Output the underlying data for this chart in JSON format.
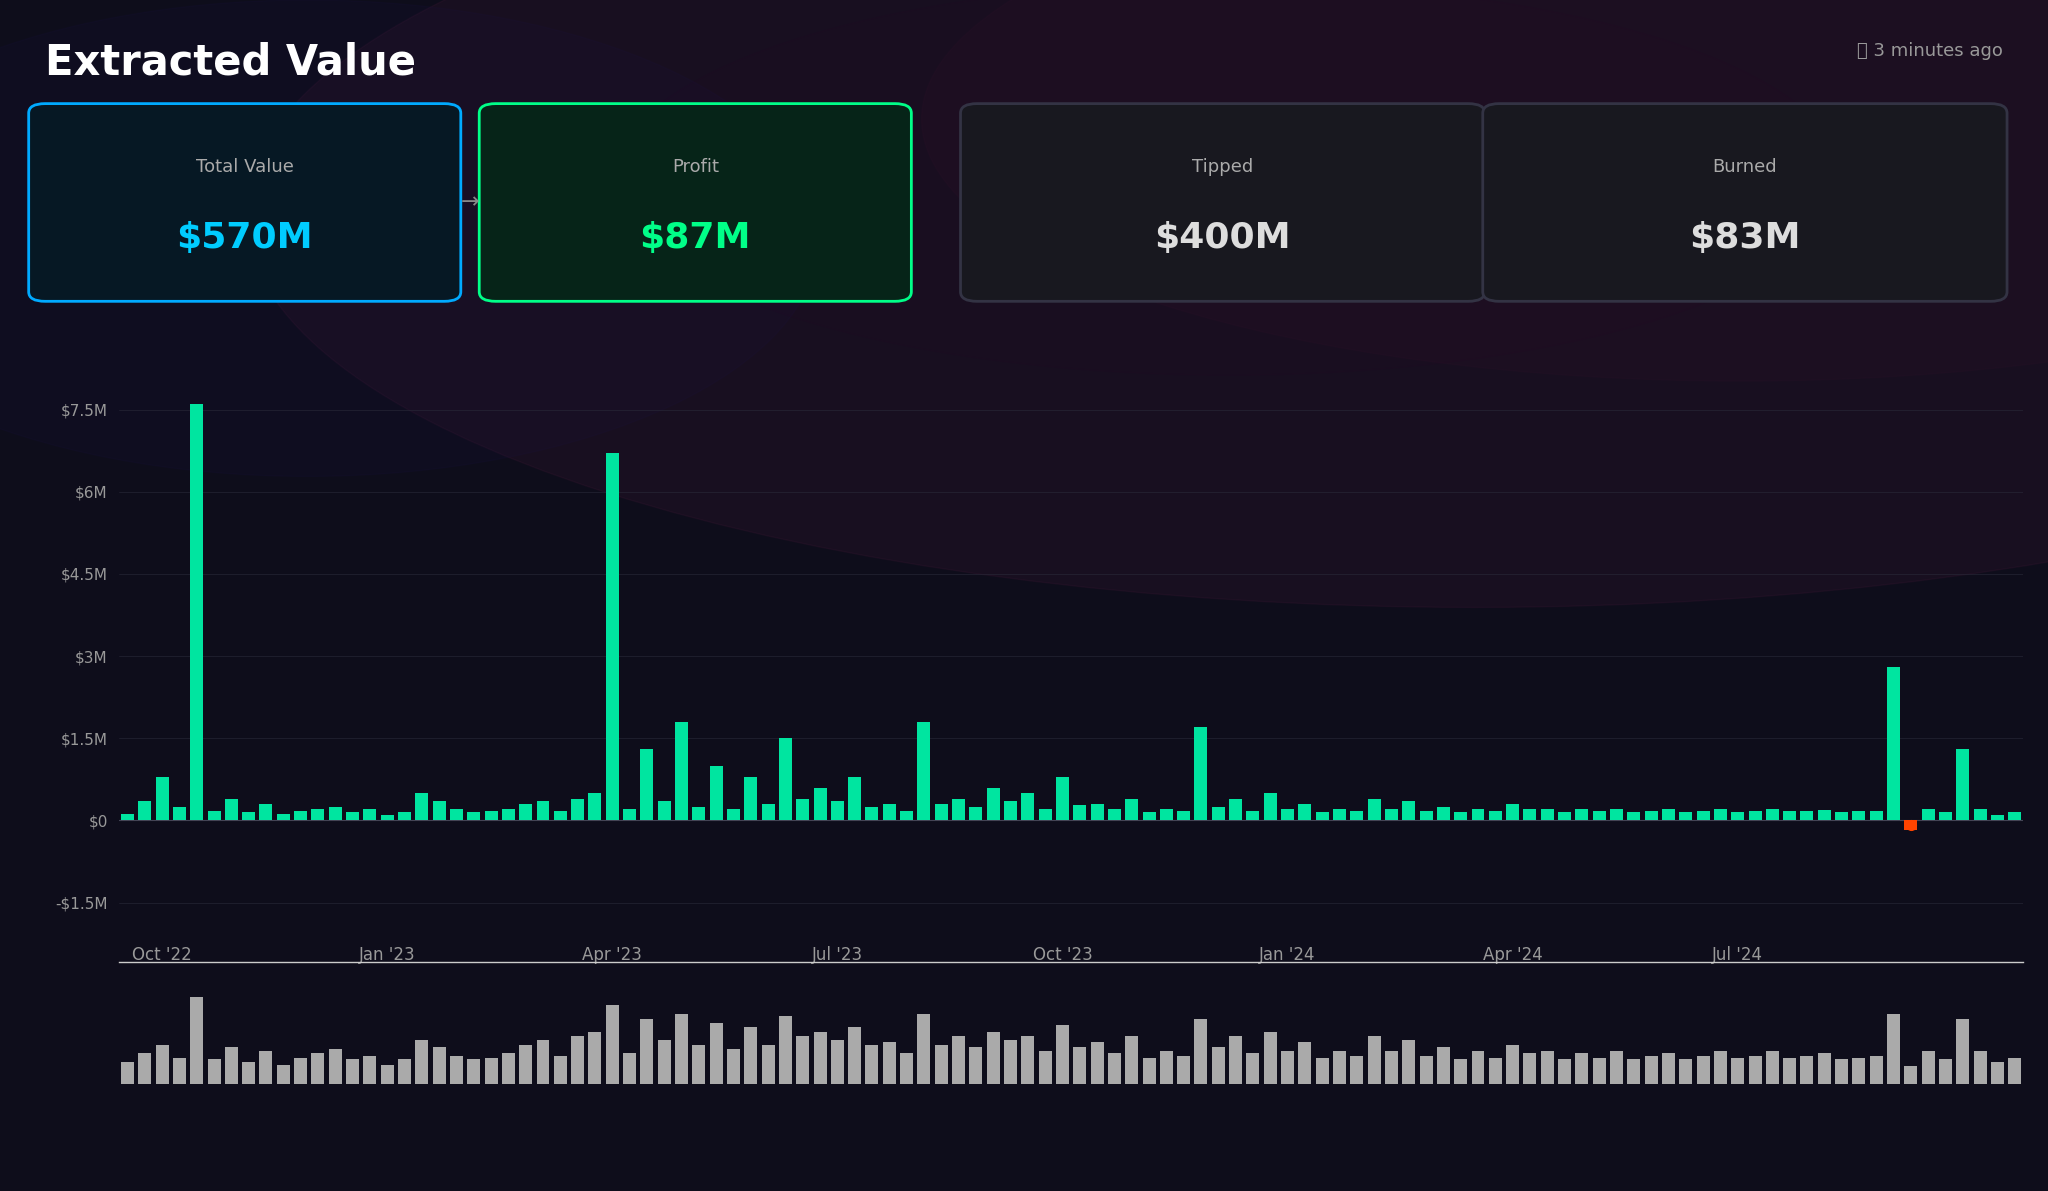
{
  "title": "Extracted Value",
  "timestamp": "⌛ 3 minutes ago",
  "stats": [
    {
      "label": "Total Value",
      "value": "$570M",
      "border": "#00aaff",
      "bg": "#061824",
      "val_color": "#00ccff"
    },
    {
      "label": "Profit",
      "value": "$87M",
      "border": "#00ff88",
      "bg": "#062418",
      "val_color": "#00ff88"
    },
    {
      "label": "Tipped",
      "value": "$400M",
      "border": "#333344",
      "bg": "#18181f",
      "val_color": "#dddddd"
    },
    {
      "label": "Burned",
      "value": "$83M",
      "border": "#333344",
      "bg": "#18181f",
      "val_color": "#dddddd"
    }
  ],
  "bg_color": "#0e0d1b",
  "bar_color": "#00e5a0",
  "bar_color_neg": "#ff4400",
  "mini_bar_color": "#aaaaaa",
  "yticks": [
    "$7.5M",
    "$6M",
    "$4.5M",
    "$3M",
    "$1.5M",
    "$0",
    "-$1.5M"
  ],
  "ytick_vals": [
    7500000,
    6000000,
    4500000,
    3000000,
    1500000,
    0,
    -1500000
  ],
  "xtick_labels": [
    "Oct '22",
    "Jan '23",
    "Apr '23",
    "Jul '23",
    "Oct '23",
    "Jan '24",
    "Apr '24",
    "Jul '24"
  ],
  "ylim": [
    -2200000,
    9000000
  ],
  "bar_values": [
    120000,
    350000,
    800000,
    250000,
    7600000,
    180000,
    400000,
    150000,
    300000,
    120000,
    180000,
    200000,
    250000,
    150000,
    200000,
    100000,
    150000,
    500000,
    350000,
    200000,
    150000,
    180000,
    200000,
    300000,
    350000,
    180000,
    400000,
    500000,
    6700000,
    200000,
    1300000,
    350000,
    1800000,
    250000,
    1000000,
    200000,
    800000,
    300000,
    1500000,
    400000,
    600000,
    350000,
    800000,
    250000,
    300000,
    180000,
    1800000,
    300000,
    400000,
    250000,
    600000,
    350000,
    500000,
    200000,
    800000,
    280000,
    300000,
    200000,
    400000,
    150000,
    200000,
    180000,
    1700000,
    250000,
    400000,
    180000,
    500000,
    200000,
    300000,
    150000,
    200000,
    180000,
    400000,
    200000,
    350000,
    180000,
    250000,
    150000,
    200000,
    180000,
    300000,
    200000,
    200000,
    150000,
    200000,
    180000,
    200000,
    150000,
    180000,
    200000,
    150000,
    180000,
    200000,
    160000,
    180000,
    200000,
    170000,
    180000,
    190000,
    160000,
    170000,
    180000,
    2800000,
    -180000,
    200000,
    150000,
    1300000,
    200000,
    100000,
    150000
  ],
  "mini_bar_values": [
    0.25,
    0.35,
    0.45,
    0.3,
    1.0,
    0.28,
    0.42,
    0.25,
    0.38,
    0.22,
    0.3,
    0.35,
    0.4,
    0.28,
    0.32,
    0.22,
    0.28,
    0.5,
    0.42,
    0.32,
    0.28,
    0.3,
    0.35,
    0.45,
    0.5,
    0.32,
    0.55,
    0.6,
    0.9,
    0.35,
    0.75,
    0.5,
    0.8,
    0.45,
    0.7,
    0.4,
    0.65,
    0.45,
    0.78,
    0.55,
    0.6,
    0.5,
    0.65,
    0.45,
    0.48,
    0.35,
    0.8,
    0.45,
    0.55,
    0.42,
    0.6,
    0.5,
    0.55,
    0.38,
    0.68,
    0.42,
    0.48,
    0.35,
    0.55,
    0.3,
    0.38,
    0.32,
    0.75,
    0.42,
    0.55,
    0.35,
    0.6,
    0.38,
    0.48,
    0.3,
    0.38,
    0.32,
    0.55,
    0.38,
    0.5,
    0.32,
    0.42,
    0.28,
    0.38,
    0.3,
    0.45,
    0.35,
    0.38,
    0.28,
    0.35,
    0.3,
    0.38,
    0.28,
    0.32,
    0.35,
    0.28,
    0.32,
    0.38,
    0.3,
    0.32,
    0.38,
    0.3,
    0.32,
    0.35,
    0.28,
    0.3,
    0.32,
    0.8,
    0.2,
    0.38,
    0.28,
    0.75,
    0.38,
    0.25,
    0.3
  ]
}
